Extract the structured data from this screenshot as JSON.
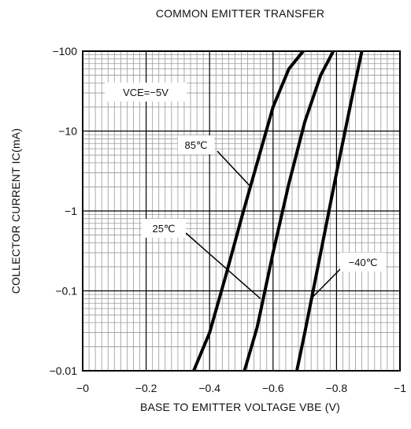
{
  "chart_data": {
    "type": "line",
    "title": "COMMON EMITTER TRANSFER",
    "xlabel": "BASE TO EMITTER VOLTAGE  VBE  (V)",
    "ylabel": "COLLECTOR CURRENT  IC(mA)",
    "y_scale": "log",
    "xlim": [
      0,
      -1
    ],
    "ylim": [
      -0.01,
      -100
    ],
    "grid": true,
    "x_ticks": [
      "−0",
      "−0.2",
      "−0.4",
      "−0.6",
      "−0.8",
      "−1"
    ],
    "y_ticks": [
      "−0.01",
      "−0.1",
      "−1",
      "−10",
      "−100"
    ],
    "condition": "VCE=−5V",
    "series": [
      {
        "name": "85℃",
        "points": [
          [
            -0.35,
            -0.01
          ],
          [
            -0.4,
            -0.03
          ],
          [
            -0.45,
            -0.15
          ],
          [
            -0.5,
            -0.8
          ],
          [
            -0.55,
            -4
          ],
          [
            -0.6,
            -20
          ],
          [
            -0.65,
            -60
          ],
          [
            -0.695,
            -100
          ]
        ]
      },
      {
        "name": "25℃",
        "points": [
          [
            -0.51,
            -0.01
          ],
          [
            -0.55,
            -0.035
          ],
          [
            -0.6,
            -0.3
          ],
          [
            -0.65,
            -2.2
          ],
          [
            -0.7,
            -13
          ],
          [
            -0.75,
            -50
          ],
          [
            -0.79,
            -100
          ]
        ]
      },
      {
        "name": "−40℃",
        "points": [
          [
            -0.675,
            -0.01
          ],
          [
            -0.7,
            -0.03
          ],
          [
            -0.75,
            -0.3
          ],
          [
            -0.8,
            -3
          ],
          [
            -0.85,
            -28
          ],
          [
            -0.88,
            -100
          ]
        ]
      }
    ],
    "annotations": [
      {
        "text": "85℃",
        "series": "85℃",
        "at": [
          -0.53,
          -2
        ]
      },
      {
        "text": "25℃",
        "series": "25℃",
        "at": [
          -0.56,
          -0.08
        ]
      },
      {
        "text": "−40℃",
        "series": "−40℃",
        "at": [
          -0.72,
          -0.08
        ]
      }
    ]
  }
}
